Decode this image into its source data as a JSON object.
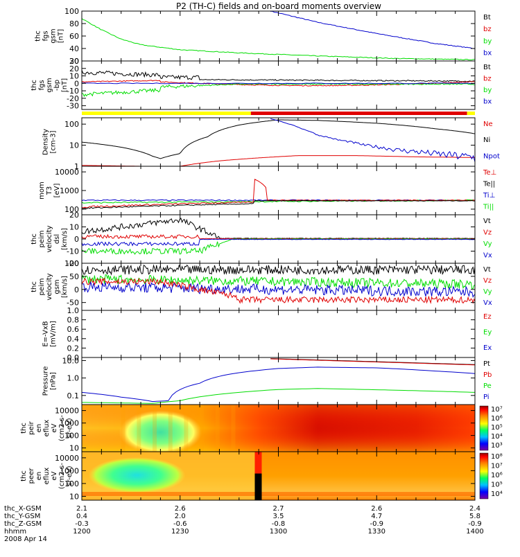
{
  "title": "P2 (TH-C) fields and on-board moments overview",
  "date": "2008 Apr 14",
  "colors": {
    "black": "#000000",
    "red": "#e00000",
    "green": "#00dd00",
    "blue": "#0000cc",
    "yellow": "#ffff00",
    "orange": "#ff8800"
  },
  "chart_data": [
    {
      "id": "p1",
      "type": "line",
      "ylabel": "thc\nfgs\ngsm\n[nT]",
      "ylim": [
        20,
        100
      ],
      "yticks": [
        "100",
        "80",
        "60",
        "40",
        "20"
      ],
      "legend": [
        "Bt",
        "bz",
        "by",
        "bx"
      ],
      "series": [
        {
          "name": "bx",
          "color": "blue",
          "points": [
            [
              0.48,
              100
            ],
            [
              0.6,
              82
            ],
            [
              0.75,
              64
            ],
            [
              0.9,
              48
            ],
            [
              1.0,
              40
            ]
          ]
        },
        {
          "name": "by",
          "color": "green",
          "points": [
            [
              0,
              88
            ],
            [
              0.05,
              70
            ],
            [
              0.1,
              55
            ],
            [
              0.15,
              46
            ],
            [
              0.25,
              38
            ],
            [
              0.4,
              33
            ],
            [
              0.6,
              28
            ],
            [
              0.8,
              24
            ],
            [
              1.0,
              22
            ]
          ]
        }
      ]
    },
    {
      "id": "p2",
      "type": "line",
      "ylabel": "thc\nfgs\ngsm\n-bp\n[nT]",
      "ylim": [
        -35,
        30
      ],
      "yticks": [
        "30",
        "20",
        "10",
        "0",
        "-10",
        "-20",
        "-30"
      ],
      "legend": [
        "Bt",
        "bz",
        "by",
        "bx"
      ]
    },
    {
      "id": "bar",
      "type": "flag",
      "segments": [
        {
          "from": 0,
          "to": 0.43,
          "color": "yellow"
        },
        {
          "from": 0.43,
          "to": 0.98,
          "color": "red"
        },
        {
          "from": 0.98,
          "to": 1.0,
          "color": "yellow"
        }
      ]
    },
    {
      "id": "p3",
      "type": "line",
      "scale": "log",
      "ylabel": "Density\n[cm-3]",
      "ylim": [
        1,
        200
      ],
      "yticks": [
        "100",
        "10",
        "1"
      ],
      "legend": [
        "Ne",
        "Ni",
        "Npot"
      ],
      "series": [
        {
          "name": "Ni",
          "color": "black",
          "points": [
            [
              0,
              14
            ],
            [
              0.1,
              8
            ],
            [
              0.18,
              3
            ],
            [
              0.2,
              2.3
            ],
            [
              0.25,
              4
            ],
            [
              0.32,
              25
            ],
            [
              0.4,
              90
            ],
            [
              0.5,
              160
            ],
            [
              0.6,
              150
            ],
            [
              0.75,
              110
            ],
            [
              0.9,
              60
            ],
            [
              1.0,
              35
            ]
          ]
        },
        {
          "name": "Ne",
          "color": "red",
          "points": [
            [
              0,
              1.1
            ],
            [
              0.15,
              1
            ],
            [
              0.25,
              1
            ],
            [
              0.35,
              1.8
            ],
            [
              0.45,
              2.5
            ],
            [
              0.55,
              3.2
            ],
            [
              0.7,
              3.2
            ],
            [
              0.85,
              2.8
            ],
            [
              1.0,
              2.6
            ]
          ]
        },
        {
          "name": "Npot",
          "color": "blue",
          "points": [
            [
              0.48,
              180
            ],
            [
              0.52,
              110
            ],
            [
              0.56,
              60
            ],
            [
              0.6,
              30
            ],
            [
              0.65,
              18
            ],
            [
              0.72,
              10
            ],
            [
              0.8,
              6
            ],
            [
              0.9,
              4
            ],
            [
              1.0,
              2.6
            ]
          ]
        }
      ]
    },
    {
      "id": "p4",
      "type": "line",
      "scale": "log",
      "ylabel": "mom\nT3\n[eV]",
      "ylim": [
        50,
        20000
      ],
      "yticks": [
        "10000",
        "1000",
        "100"
      ],
      "legend": [
        "Te⊥",
        "Te||",
        "Ti⊥",
        "Ti||"
      ]
    },
    {
      "id": "p5",
      "type": "line",
      "ylabel": "thc\npeim\nvelocity\ndsl\n[km/s]",
      "ylim": [
        -20,
        20
      ],
      "yticks": [
        "20",
        "10",
        "0",
        "-10",
        "-20"
      ],
      "legend": [
        "Vt",
        "Vz",
        "Vy",
        "Vx"
      ]
    },
    {
      "id": "p6",
      "type": "line",
      "ylabel": "thc\npeim\nvelocity\ngsm\n[km/s]",
      "ylim": [
        -80,
        100
      ],
      "yticks": [
        "100",
        "50",
        "0",
        "-50"
      ],
      "legend": [
        "Vt",
        "Vz",
        "Vy",
        "Vx"
      ]
    },
    {
      "id": "p7",
      "type": "line",
      "ylabel": "E=-VxB\n[mV/m]",
      "ylim": [
        0,
        1
      ],
      "yticks": [
        "1.0",
        "0.8",
        "0.6",
        "0.4",
        "0.2",
        "0.0"
      ],
      "legend": [
        "Ez",
        "Ey",
        "Ex"
      ]
    },
    {
      "id": "p8",
      "type": "line",
      "scale": "log",
      "ylabel": "Pressure\n[nPa]",
      "ylim": [
        0.03,
        15
      ],
      "yticks": [
        "10.0",
        "1.0",
        "0.1"
      ],
      "legend": [
        "Pt",
        "Pb",
        "Pe",
        "Pi"
      ]
    },
    {
      "id": "p9",
      "type": "heatmap",
      "scale": "log",
      "ylabel": "thc\npeir\nen\neflux\neV\n(cm2-s-\nsr-eV)",
      "ylim": [
        5,
        30000
      ],
      "yticks": [
        "10000",
        "1000",
        "100",
        "10"
      ],
      "colorbar": [
        "10⁷",
        "10⁶",
        "10⁵",
        "10⁴",
        "10³"
      ]
    },
    {
      "id": "p10",
      "type": "heatmap",
      "scale": "log",
      "ylabel": "thc\npeer\nen\neflux\neV\n(cm2-s-\nsr-eV)",
      "ylim": [
        5,
        30000
      ],
      "yticks": [
        "10000",
        "1000",
        "100",
        "10"
      ],
      "colorbar": [
        "10⁸",
        "10⁷",
        "10⁶",
        "10⁵",
        "10⁴"
      ]
    }
  ],
  "xaxis": {
    "rows": [
      {
        "label": "thc_X-GSM",
        "values": [
          "2.1",
          "2.6",
          "2.7",
          "2.6",
          "2.4"
        ]
      },
      {
        "label": "thc_Y-GSM",
        "values": [
          "0.4",
          "2.0",
          "3.5",
          "4.7",
          "5.8"
        ]
      },
      {
        "label": "thc_Z-GSM",
        "values": [
          "-0.3",
          "-0.6",
          "-0.8",
          "-0.9",
          "-0.9"
        ]
      },
      {
        "label": "hhmm",
        "values": [
          "1200",
          "1230",
          "1300",
          "1330",
          "1400"
        ]
      }
    ]
  }
}
